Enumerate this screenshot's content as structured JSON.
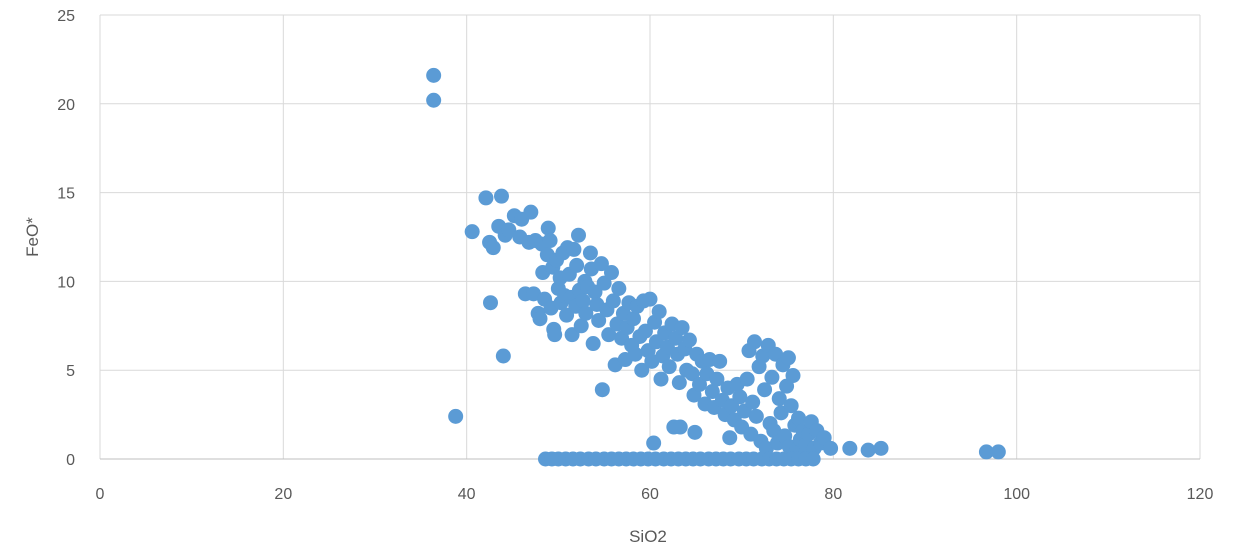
{
  "chart_data": {
    "type": "scatter",
    "title": "",
    "xlabel": "SiO2",
    "ylabel": "FeO*",
    "xlim": [
      0,
      120
    ],
    "ylim": [
      0,
      25
    ],
    "xticks": [
      0,
      20,
      40,
      60,
      80,
      100,
      120
    ],
    "yticks": [
      0,
      5,
      10,
      15,
      20,
      25
    ],
    "grid": true,
    "legend": "none",
    "marker_color": "#5b9bd5",
    "series": [
      {
        "points": [
          [
            36.4,
            21.6
          ],
          [
            36.4,
            20.2
          ],
          [
            38.8,
            2.4
          ],
          [
            40.6,
            12.8
          ],
          [
            42.1,
            14.7
          ],
          [
            42.5,
            12.2
          ],
          [
            42.6,
            8.8
          ],
          [
            42.9,
            11.9
          ],
          [
            43.5,
            13.1
          ],
          [
            43.8,
            14.8
          ],
          [
            44.0,
            5.8
          ],
          [
            44.2,
            12.6
          ],
          [
            44.6,
            12.9
          ],
          [
            45.2,
            13.7
          ],
          [
            45.8,
            12.5
          ],
          [
            46.0,
            13.5
          ],
          [
            46.4,
            9.3
          ],
          [
            46.8,
            12.2
          ],
          [
            47.0,
            13.9
          ],
          [
            47.3,
            9.3
          ],
          [
            47.5,
            12.3
          ],
          [
            47.8,
            8.2
          ],
          [
            48.0,
            7.9
          ],
          [
            48.2,
            12.1
          ],
          [
            48.3,
            10.5
          ],
          [
            48.5,
            9.0
          ],
          [
            48.8,
            11.5
          ],
          [
            48.9,
            13.0
          ],
          [
            49.1,
            12.3
          ],
          [
            49.2,
            8.5
          ],
          [
            49.4,
            10.8
          ],
          [
            49.5,
            7.3
          ],
          [
            49.6,
            7.0
          ],
          [
            49.8,
            11.2
          ],
          [
            50.0,
            9.6
          ],
          [
            50.2,
            10.2
          ],
          [
            50.3,
            8.8
          ],
          [
            50.5,
            11.6
          ],
          [
            50.7,
            9.2
          ],
          [
            50.9,
            8.1
          ],
          [
            51.0,
            11.9
          ],
          [
            51.2,
            10.4
          ],
          [
            51.4,
            9.1
          ],
          [
            51.5,
            7.0
          ],
          [
            51.7,
            11.8
          ],
          [
            51.9,
            8.6
          ],
          [
            52.0,
            10.9
          ],
          [
            52.2,
            12.6
          ],
          [
            52.3,
            9.5
          ],
          [
            52.5,
            7.5
          ],
          [
            52.7,
            8.9
          ],
          [
            52.9,
            10.0
          ],
          [
            53.0,
            8.2
          ],
          [
            53.2,
            9.7
          ],
          [
            53.5,
            11.6
          ],
          [
            53.6,
            10.7
          ],
          [
            53.8,
            6.5
          ],
          [
            54.0,
            9.4
          ],
          [
            54.2,
            8.7
          ],
          [
            54.4,
            7.8
          ],
          [
            54.7,
            11.0
          ],
          [
            54.8,
            3.9
          ],
          [
            55.0,
            9.9
          ],
          [
            55.3,
            8.4
          ],
          [
            55.5,
            7.0
          ],
          [
            55.8,
            10.5
          ],
          [
            56.0,
            8.9
          ],
          [
            56.2,
            5.3
          ],
          [
            56.4,
            7.6
          ],
          [
            56.6,
            9.6
          ],
          [
            56.9,
            6.8
          ],
          [
            57.1,
            8.2
          ],
          [
            57.3,
            5.6
          ],
          [
            57.5,
            7.4
          ],
          [
            57.7,
            8.8
          ],
          [
            58.0,
            6.4
          ],
          [
            58.2,
            7.9
          ],
          [
            58.4,
            5.9
          ],
          [
            58.6,
            8.6
          ],
          [
            58.9,
            6.9
          ],
          [
            59.1,
            5.0
          ],
          [
            59.3,
            8.9
          ],
          [
            59.5,
            7.2
          ],
          [
            59.8,
            6.1
          ],
          [
            60.0,
            9.0
          ],
          [
            60.2,
            5.5
          ],
          [
            60.4,
            0.9
          ],
          [
            60.5,
            7.7
          ],
          [
            60.7,
            6.6
          ],
          [
            61.0,
            8.3
          ],
          [
            61.2,
            4.5
          ],
          [
            61.4,
            5.8
          ],
          [
            61.6,
            7.1
          ],
          [
            61.9,
            6.3
          ],
          [
            62.1,
            5.2
          ],
          [
            62.4,
            7.6
          ],
          [
            62.6,
            1.8
          ],
          [
            62.8,
            6.8
          ],
          [
            63.0,
            5.9
          ],
          [
            63.2,
            4.3
          ],
          [
            63.3,
            1.8
          ],
          [
            63.5,
            7.4
          ],
          [
            63.8,
            6.2
          ],
          [
            64.0,
            5.0
          ],
          [
            64.3,
            6.7
          ],
          [
            64.6,
            4.8
          ],
          [
            64.8,
            3.6
          ],
          [
            64.9,
            1.5
          ],
          [
            65.1,
            5.9
          ],
          [
            65.4,
            4.2
          ],
          [
            65.7,
            5.5
          ],
          [
            66.0,
            3.1
          ],
          [
            66.2,
            4.8
          ],
          [
            66.5,
            5.6
          ],
          [
            66.8,
            3.8
          ],
          [
            67.0,
            2.9
          ],
          [
            67.3,
            4.5
          ],
          [
            67.6,
            5.5
          ],
          [
            67.9,
            3.3
          ],
          [
            68.2,
            2.5
          ],
          [
            68.5,
            4.0
          ],
          [
            68.7,
            1.2
          ],
          [
            68.9,
            3.0
          ],
          [
            69.2,
            2.2
          ],
          [
            69.5,
            4.2
          ],
          [
            69.8,
            3.5
          ],
          [
            70.0,
            1.8
          ],
          [
            70.3,
            2.7
          ],
          [
            70.6,
            4.5
          ],
          [
            70.8,
            6.1
          ],
          [
            71.0,
            1.4
          ],
          [
            71.2,
            3.2
          ],
          [
            71.4,
            6.6
          ],
          [
            71.6,
            2.4
          ],
          [
            71.9,
            5.2
          ],
          [
            72.1,
            1.0
          ],
          [
            72.3,
            5.8
          ],
          [
            72.5,
            3.9
          ],
          [
            72.7,
            0.6
          ],
          [
            72.9,
            6.4
          ],
          [
            73.1,
            2.0
          ],
          [
            73.3,
            4.6
          ],
          [
            73.5,
            1.6
          ],
          [
            73.7,
            5.9
          ],
          [
            73.9,
            0.9
          ],
          [
            74.1,
            3.4
          ],
          [
            74.3,
            2.6
          ],
          [
            74.5,
            5.3
          ],
          [
            74.7,
            1.3
          ],
          [
            74.9,
            4.1
          ],
          [
            75.1,
            5.7
          ],
          [
            75.2,
            0.7
          ],
          [
            75.4,
            3.0
          ],
          [
            75.6,
            4.7
          ],
          [
            75.8,
            1.9
          ],
          [
            76.0,
            0.5
          ],
          [
            76.2,
            2.3
          ],
          [
            76.4,
            1.1
          ],
          [
            76.7,
            1.6
          ],
          [
            77.0,
            0.8
          ],
          [
            77.3,
            1.4
          ],
          [
            77.6,
            2.1
          ],
          [
            77.9,
            0.6
          ],
          [
            78.2,
            1.6
          ],
          [
            78.6,
            0.9
          ],
          [
            79.0,
            1.2
          ],
          [
            79.7,
            0.6
          ],
          [
            81.8,
            0.6
          ],
          [
            83.8,
            0.5
          ],
          [
            85.2,
            0.6
          ],
          [
            96.7,
            0.4
          ],
          [
            98.0,
            0.4
          ],
          [
            48.6,
            0.0
          ],
          [
            49.3,
            0.0
          ],
          [
            50.0,
            0.0
          ],
          [
            50.8,
            0.0
          ],
          [
            51.6,
            0.0
          ],
          [
            52.4,
            0.0
          ],
          [
            53.3,
            0.0
          ],
          [
            54.1,
            0.0
          ],
          [
            55.0,
            0.0
          ],
          [
            55.8,
            0.0
          ],
          [
            56.6,
            0.0
          ],
          [
            57.4,
            0.0
          ],
          [
            58.2,
            0.0
          ],
          [
            59.0,
            0.0
          ],
          [
            59.8,
            0.0
          ],
          [
            60.6,
            0.0
          ],
          [
            61.5,
            0.0
          ],
          [
            62.3,
            0.0
          ],
          [
            63.1,
            0.0
          ],
          [
            63.9,
            0.0
          ],
          [
            64.7,
            0.0
          ],
          [
            65.5,
            0.0
          ],
          [
            66.4,
            0.0
          ],
          [
            67.2,
            0.0
          ],
          [
            68.0,
            0.0
          ],
          [
            68.8,
            0.0
          ],
          [
            69.7,
            0.0
          ],
          [
            70.5,
            0.0
          ],
          [
            71.3,
            0.0
          ],
          [
            72.2,
            0.0
          ],
          [
            73.0,
            0.0
          ],
          [
            73.8,
            0.0
          ],
          [
            74.6,
            0.0
          ],
          [
            75.4,
            0.0
          ],
          [
            76.2,
            0.0
          ],
          [
            77.0,
            0.0
          ],
          [
            77.8,
            0.0
          ]
        ]
      }
    ]
  }
}
